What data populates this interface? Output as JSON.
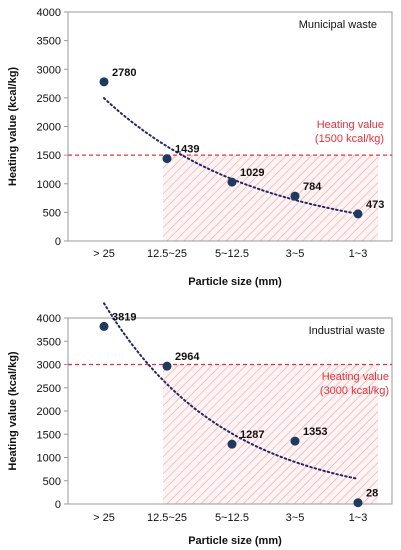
{
  "chart_data": [
    {
      "type": "scatter",
      "title": "Municipal waste",
      "xlabel": "Particle size (mm)",
      "ylabel": "Heating value (kcal/kg)",
      "ylim": [
        0,
        4000
      ],
      "yticks": [
        0,
        500,
        1000,
        1500,
        2000,
        2500,
        3000,
        3500,
        4000
      ],
      "categories": [
        "> 25",
        "12.5~25",
        "5~12.5",
        "3~5",
        "1~3"
      ],
      "series": [
        {
          "values": [
            2780,
            1439,
            1029,
            784,
            473
          ],
          "color": "#1f3a5f"
        }
      ],
      "data_labels": [
        "2780",
        "1439",
        "1029",
        "784",
        "473"
      ],
      "reference_line": {
        "value": 1500,
        "label_line1": "Heating value",
        "label_line2": "(1500 kcal/kg)",
        "color": "#e8303a"
      },
      "shaded_region": {
        "from_category": 1,
        "to_category": 4,
        "color": "#f4a0a6"
      },
      "trendline": {
        "style": "dotted",
        "color": "#1f2a66"
      },
      "grid": false,
      "legend": "none"
    },
    {
      "type": "scatter",
      "title": "Industrial waste",
      "xlabel": "Particle size (mm)",
      "ylabel": "Heating value (kcal/kg)",
      "ylim": [
        0,
        4000
      ],
      "yticks": [
        0,
        500,
        1000,
        1500,
        2000,
        2500,
        3000,
        3500,
        4000
      ],
      "categories": [
        "> 25",
        "12.5~25",
        "5~12.5",
        "3~5",
        "1~3"
      ],
      "series": [
        {
          "values": [
            3819,
            2964,
            1287,
            1353,
            28
          ],
          "color": "#1f3a5f"
        }
      ],
      "data_labels": [
        "3819",
        "2964",
        "1287",
        "1353",
        "28"
      ],
      "reference_line": {
        "value": 3000,
        "label_line1": "Heating value",
        "label_line2": "(3000 kcal/kg)",
        "color": "#e8303a"
      },
      "shaded_region": {
        "from_category": 1,
        "to_category": 4,
        "color": "#f4a0a6"
      },
      "trendline": {
        "style": "dotted",
        "color": "#1f2a66"
      },
      "grid": false,
      "legend": "none"
    }
  ]
}
